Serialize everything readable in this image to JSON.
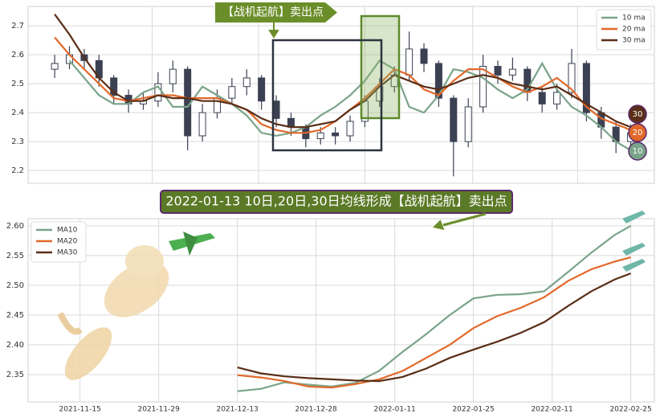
{
  "chart_data": [
    {
      "type": "candlestick",
      "annotation": "【战机起航】卖出点",
      "candle_color": "#3b4152",
      "open": [
        2.55,
        2.57,
        2.6,
        2.58,
        2.52,
        2.46,
        2.43,
        2.44,
        2.5,
        2.55,
        2.32,
        2.4,
        2.45,
        2.49,
        2.52,
        2.44,
        2.38,
        2.35,
        2.31,
        2.33,
        2.32,
        2.37,
        2.44,
        2.49,
        2.53,
        2.62,
        2.57,
        2.45,
        2.3,
        2.42,
        2.56,
        2.53,
        2.55,
        2.47,
        2.43,
        2.47,
        2.57,
        2.4,
        2.35,
        2.3
      ],
      "high": [
        2.6,
        2.63,
        2.62,
        2.6,
        2.53,
        2.48,
        2.47,
        2.54,
        2.58,
        2.56,
        2.43,
        2.48,
        2.52,
        2.55,
        2.53,
        2.46,
        2.4,
        2.36,
        2.35,
        2.35,
        2.39,
        2.46,
        2.52,
        2.56,
        2.68,
        2.64,
        2.58,
        2.46,
        2.45,
        2.6,
        2.58,
        2.59,
        2.56,
        2.49,
        2.5,
        2.62,
        2.58,
        2.42,
        2.37,
        2.36
      ],
      "low": [
        2.52,
        2.55,
        2.55,
        2.49,
        2.43,
        2.4,
        2.41,
        2.42,
        2.47,
        2.27,
        2.3,
        2.38,
        2.43,
        2.46,
        2.41,
        2.35,
        2.32,
        2.28,
        2.29,
        2.29,
        2.3,
        2.35,
        2.42,
        2.47,
        2.51,
        2.54,
        2.42,
        2.18,
        2.28,
        2.4,
        2.5,
        2.51,
        2.44,
        2.4,
        2.41,
        2.45,
        2.37,
        2.31,
        2.26,
        2.28
      ],
      "close": [
        2.57,
        2.6,
        2.58,
        2.52,
        2.46,
        2.43,
        2.44,
        2.5,
        2.55,
        2.32,
        2.4,
        2.45,
        2.49,
        2.52,
        2.44,
        2.38,
        2.35,
        2.31,
        2.33,
        2.32,
        2.37,
        2.44,
        2.49,
        2.53,
        2.62,
        2.57,
        2.45,
        2.3,
        2.42,
        2.56,
        2.53,
        2.55,
        2.47,
        2.43,
        2.47,
        2.57,
        2.4,
        2.35,
        2.3,
        2.33
      ],
      "series": [
        {
          "name": "10 ma",
          "color": "#7aa48a",
          "end_label": 10,
          "values": [
            null,
            2.58,
            2.52,
            2.46,
            2.43,
            2.43,
            2.47,
            2.49,
            2.42,
            2.42,
            2.49,
            2.46,
            2.43,
            2.39,
            2.33,
            2.32,
            2.33,
            2.35,
            2.39,
            2.42,
            2.46,
            2.51,
            2.58,
            2.55,
            2.42,
            2.4,
            2.46,
            2.55,
            2.54,
            2.52,
            2.48,
            2.45,
            2.48,
            2.57,
            2.48,
            2.42,
            2.39,
            2.35,
            2.3,
            2.27
          ]
        },
        {
          "name": "20 ma",
          "color": "#e2692a",
          "end_label": 20,
          "values": [
            2.66,
            2.6,
            2.55,
            2.5,
            2.45,
            2.44,
            2.45,
            2.46,
            2.46,
            2.45,
            2.45,
            2.45,
            2.43,
            2.41,
            2.36,
            2.34,
            2.33,
            2.33,
            2.34,
            2.37,
            2.41,
            2.45,
            2.5,
            2.55,
            2.53,
            2.48,
            2.46,
            2.51,
            2.55,
            2.55,
            2.52,
            2.49,
            2.47,
            2.49,
            2.52,
            2.48,
            2.42,
            2.38,
            2.36,
            2.34
          ]
        },
        {
          "name": "30 ma",
          "color": "#5a2e17",
          "end_label": 30,
          "values": [
            2.74,
            2.67,
            2.59,
            2.52,
            2.47,
            2.44,
            2.44,
            2.46,
            2.45,
            2.45,
            2.44,
            2.44,
            2.43,
            2.41,
            2.38,
            2.36,
            2.35,
            2.35,
            2.36,
            2.37,
            2.41,
            2.44,
            2.49,
            2.53,
            2.51,
            2.49,
            2.48,
            2.5,
            2.52,
            2.53,
            2.52,
            2.5,
            2.49,
            2.48,
            2.49,
            2.46,
            2.43,
            2.4,
            2.37,
            2.35
          ]
        }
      ],
      "xlim": [
        -1.8,
        40.6
      ],
      "xgrid": [
        6.6,
        13.8,
        21,
        28.3,
        35.4
      ],
      "ylim": [
        2.156,
        2.767
      ],
      "yticks": [
        2.2,
        2.3,
        2.4,
        2.5,
        2.6,
        2.7
      ],
      "grid": true,
      "legend": "upper right"
    },
    {
      "type": "line",
      "annotation": "2022-01-13 10日,20日,30日均线形成【战机起航】卖出点",
      "x": [
        20,
        23,
        26,
        29,
        32,
        35,
        38,
        41,
        44,
        47,
        50,
        53,
        56,
        59,
        62,
        65,
        68,
        70
      ],
      "series": [
        {
          "name": "MA10",
          "color": "#7aa48a",
          "values": [
            2.322,
            2.326,
            2.337,
            2.333,
            2.33,
            2.336,
            2.356,
            2.388,
            2.418,
            2.45,
            2.478,
            2.484,
            2.485,
            2.49,
            2.522,
            2.555,
            2.585,
            2.6
          ]
        },
        {
          "name": "MA20",
          "color": "#e2692a",
          "values": [
            2.349,
            2.345,
            2.339,
            2.33,
            2.328,
            2.334,
            2.342,
            2.356,
            2.378,
            2.4,
            2.428,
            2.448,
            2.462,
            2.48,
            2.507,
            2.527,
            2.54,
            2.547
          ]
        },
        {
          "name": "MA30",
          "color": "#5a2e17",
          "values": [
            2.362,
            2.352,
            2.347,
            2.344,
            2.342,
            2.34,
            2.339,
            2.346,
            2.36,
            2.378,
            2.392,
            2.405,
            2.42,
            2.438,
            2.465,
            2.49,
            2.51,
            2.52
          ]
        }
      ],
      "xlim": [
        -6.6,
        73
      ],
      "xticks": [
        {
          "value": 0,
          "label": "2021-11-15"
        },
        {
          "value": 10,
          "label": "2021-11-29"
        },
        {
          "value": 20,
          "label": "2021-12-13"
        },
        {
          "value": 30,
          "label": "2021-12-28"
        },
        {
          "value": 40,
          "label": "2022-01-11"
        },
        {
          "value": 50,
          "label": "2022-01-25"
        },
        {
          "value": 60,
          "label": "2022-02-11"
        },
        {
          "value": 70,
          "label": "2022-02-25"
        }
      ],
      "ylim": [
        2.304,
        2.612
      ],
      "yticks": [
        2.35,
        {
          "value": 2.4,
          "label": "2.40"
        },
        2.45,
        {
          "value": 2.5,
          "label": "2.50"
        },
        2.55,
        {
          "value": 2.6,
          "label": "2.60"
        }
      ],
      "grid": true,
      "legend": "upper left"
    }
  ]
}
